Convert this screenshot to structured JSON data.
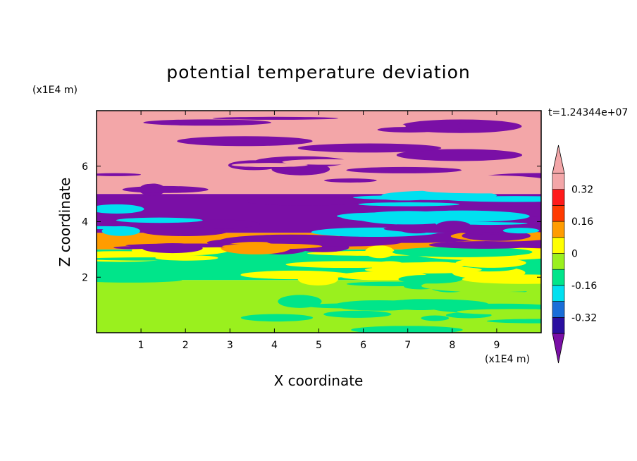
{
  "chart_data": {
    "type": "heatmap",
    "title": "potential temperature deviation",
    "xlabel": "X coordinate",
    "ylabel": "Z coordinate",
    "x_unit": "(x1E4 m)",
    "y_unit": "(x1E4 m)",
    "time_label": "t=1.24344e+07",
    "xlim": [
      0,
      10
    ],
    "ylim": [
      0,
      8
    ],
    "x_ticks": [
      "1",
      "2",
      "3",
      "4",
      "5",
      "6",
      "7",
      "8",
      "9"
    ],
    "y_ticks": [
      "2",
      "4",
      "6"
    ],
    "colorbar": {
      "levels": [
        -0.4,
        -0.32,
        -0.24,
        -0.16,
        -0.08,
        0,
        0.08,
        0.16,
        0.24,
        0.32,
        0.4
      ],
      "labels": [
        "0.32",
        "0.16",
        "0",
        "-0.16",
        "-0.32"
      ],
      "label_values": [
        0.32,
        0.16,
        0,
        -0.16,
        -0.32
      ],
      "colors_bottom_to_top": [
        "#7a0fa6",
        "#2a0fa0",
        "#1a6ed8",
        "#00e0f0",
        "#00e58a",
        "#9af01e",
        "#ffff00",
        "#ff9c00",
        "#ff3a00",
        "#ff1a1a",
        "#f3a6a8"
      ],
      "extend": "both"
    },
    "bands": [
      {
        "z_from": 0,
        "z_to": 1.9,
        "dominant": "#9af01e",
        "secondary": "#00e58a"
      },
      {
        "z_from": 1.9,
        "z_to": 3.0,
        "dominant": "#00e58a",
        "secondary": "#ffff00"
      },
      {
        "z_from": 3.0,
        "z_to": 3.6,
        "dominant": "#ff9c00",
        "secondary": "#7a0fa6"
      },
      {
        "z_from": 3.6,
        "z_to": 5.0,
        "dominant": "#7a0fa6",
        "secondary": "#00e0f0"
      },
      {
        "z_from": 5.0,
        "z_to": 8.0,
        "dominant": "#f3a6a8",
        "secondary": "#7a0fa6"
      }
    ]
  }
}
